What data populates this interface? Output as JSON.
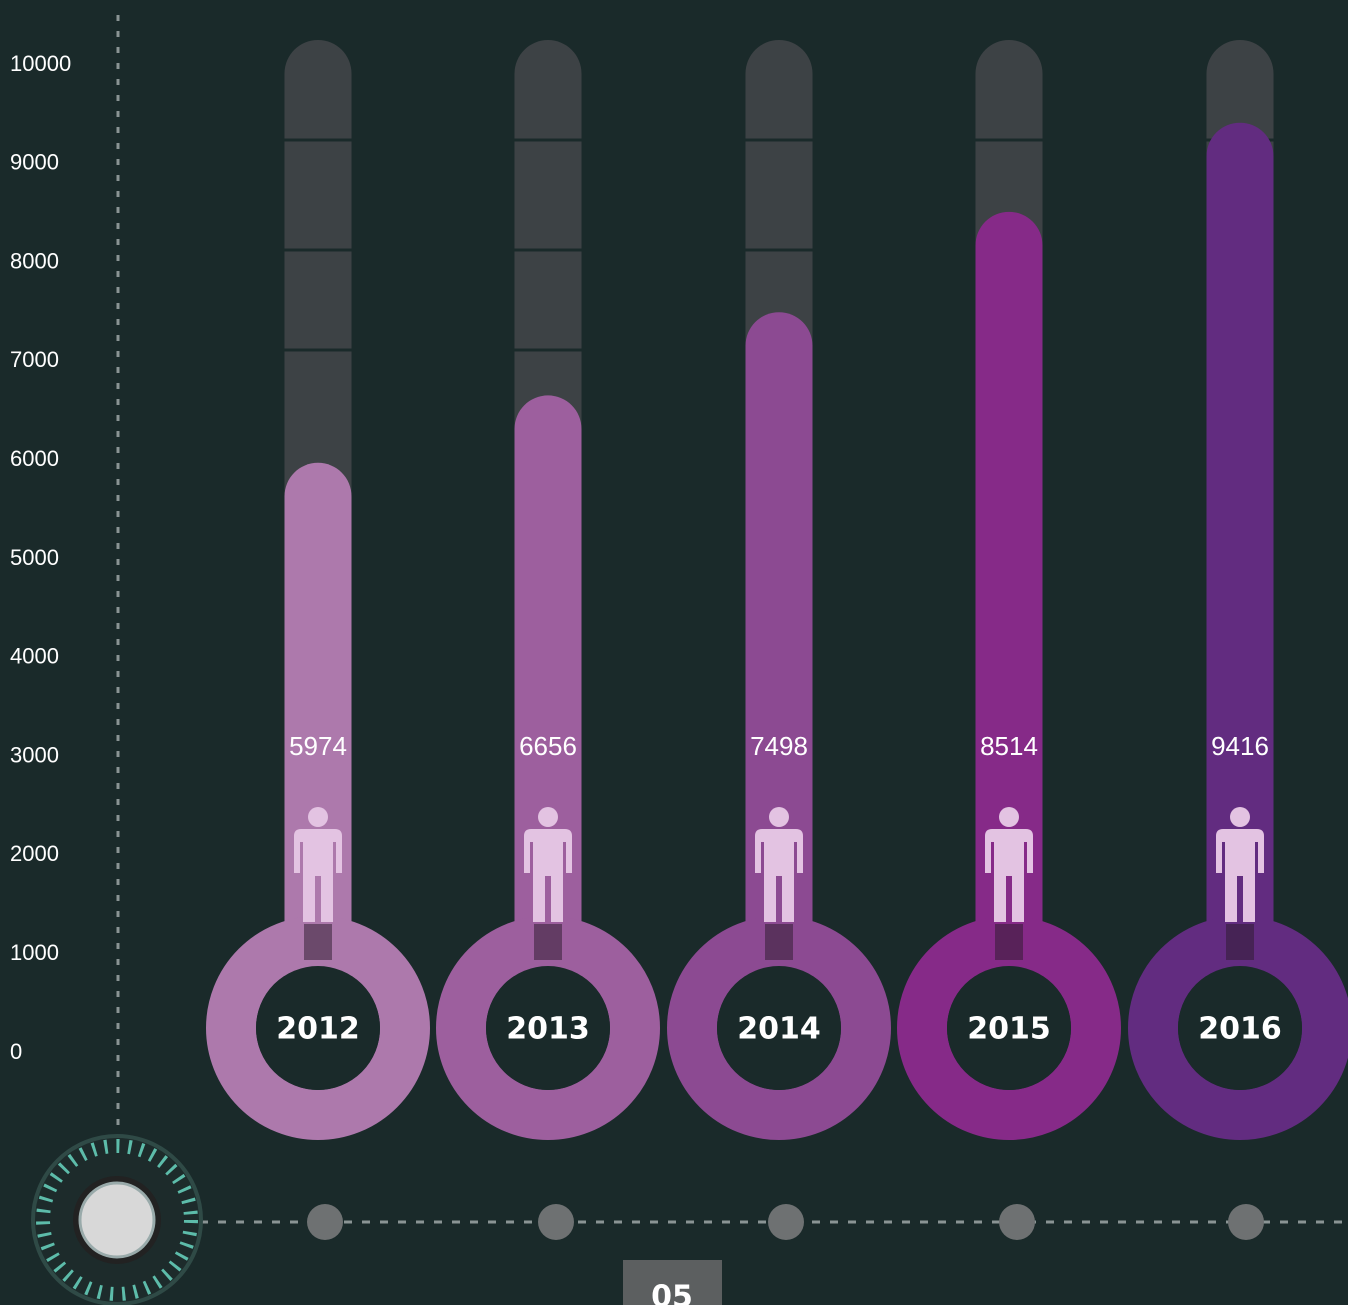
{
  "chart_data": {
    "type": "thermometer",
    "categories": [
      "2012",
      "2013",
      "2014",
      "2015",
      "2016"
    ],
    "values": [
      5974,
      6656,
      7498,
      8514,
      9416
    ],
    "colors": [
      "#ad79ac",
      "#9d5f9e",
      "#8c4a92",
      "#862a88",
      "#622c80"
    ],
    "ylim": [
      0,
      10000
    ],
    "yticks": [
      0,
      1000,
      2000,
      3000,
      4000,
      5000,
      6000,
      7000,
      8000,
      9000,
      10000
    ]
  },
  "page_number": "05"
}
